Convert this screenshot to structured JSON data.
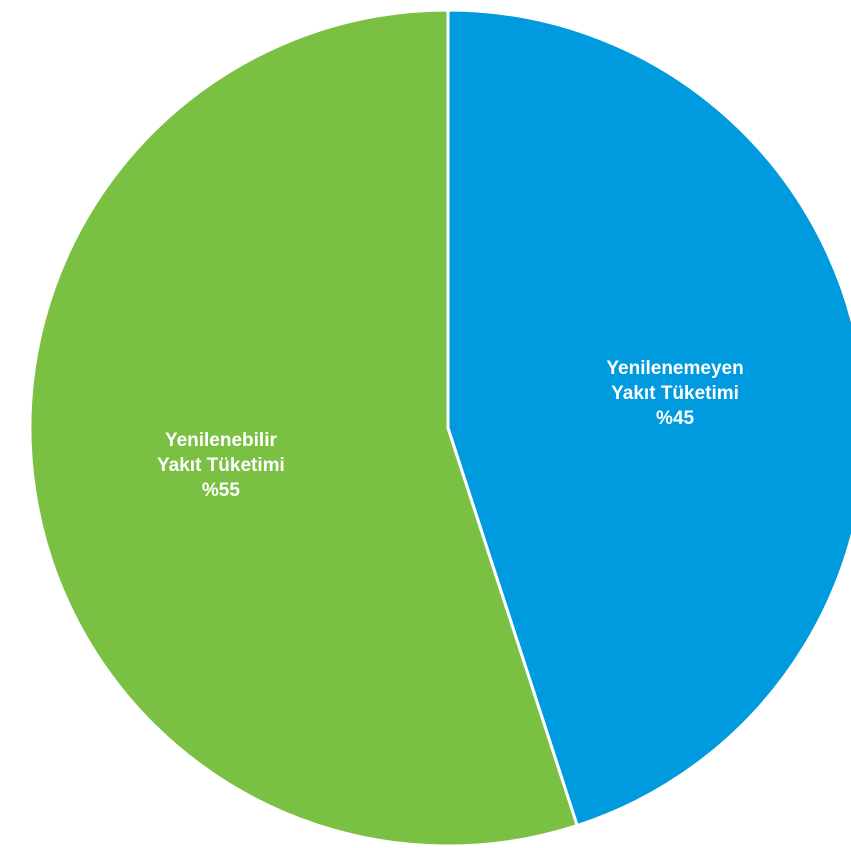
{
  "chart_data": {
    "type": "pie",
    "slices": [
      {
        "label_lines": [
          "Yenilenemeyen",
          "Yakıt Tüketimi"
        ],
        "value_label": "%45",
        "value": 45,
        "color": "#009ADE"
      },
      {
        "label_lines": [
          "Yenilenebilir",
          "Yakıt Tüketimi"
        ],
        "value_label": "%55",
        "value": 55,
        "color": "#7AC143"
      }
    ],
    "start_angle_deg": 0,
    "direction": "clockwise",
    "legend": "none",
    "labels_position": "inside"
  }
}
